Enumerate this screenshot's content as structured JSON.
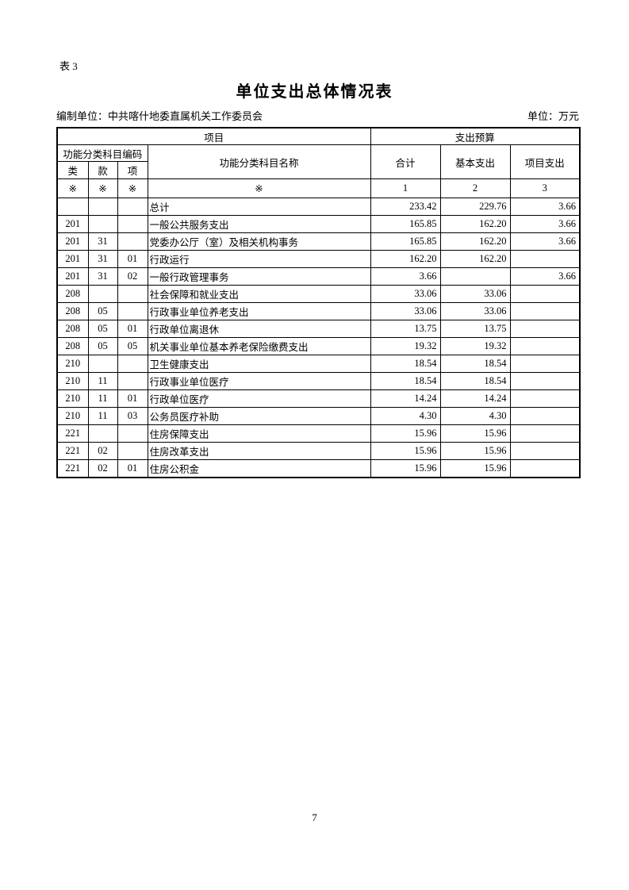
{
  "page": {
    "table_label": "表 3",
    "title": "单位支出总体情况表",
    "prepared_by_label": "编制单位：",
    "prepared_by_value": "中共喀什地委直属机关工作委员会",
    "unit_label": "单位：万元",
    "page_number": "7"
  },
  "colors": {
    "text": "#000000",
    "border": "#000000",
    "background": "#ffffff"
  },
  "table": {
    "header": {
      "project_group": "项目",
      "budget_group": "支出预算",
      "code_group": "功能分类科目编码",
      "col_lei": "类",
      "col_kuan": "款",
      "col_xiang": "项",
      "col_name": "功能分类科目名称",
      "col_total": "合计",
      "col_basic": "基本支出",
      "col_project": "项目支出",
      "marker_row": [
        "※",
        "※",
        "※",
        "※",
        "1",
        "2",
        "3"
      ]
    },
    "rows": [
      {
        "lei": "",
        "kuan": "",
        "xiang": "",
        "name": "总计",
        "total": "233.42",
        "basic": "229.76",
        "project": "3.66",
        "bold": true,
        "indent": 0
      },
      {
        "lei": "201",
        "kuan": "",
        "xiang": "",
        "name": "一般公共服务支出",
        "total": "165.85",
        "basic": "162.20",
        "project": "3.66",
        "bold": true,
        "indent": 0
      },
      {
        "lei": "201",
        "kuan": "31",
        "xiang": "",
        "name": "党委办公厅（室）及相关机构事务",
        "total": "165.85",
        "basic": "162.20",
        "project": "3.66",
        "bold": true,
        "indent": 1
      },
      {
        "lei": "201",
        "kuan": "31",
        "xiang": "01",
        "name": "行政运行",
        "total": "162.20",
        "basic": "162.20",
        "project": "",
        "bold": false,
        "indent": 2
      },
      {
        "lei": "201",
        "kuan": "31",
        "xiang": "02",
        "name": "一般行政管理事务",
        "total": "3.66",
        "basic": "",
        "project": "3.66",
        "bold": false,
        "indent": 2
      },
      {
        "lei": "208",
        "kuan": "",
        "xiang": "",
        "name": "社会保障和就业支出",
        "total": "33.06",
        "basic": "33.06",
        "project": "",
        "bold": true,
        "indent": 0
      },
      {
        "lei": "208",
        "kuan": "05",
        "xiang": "",
        "name": "行政事业单位养老支出",
        "total": "33.06",
        "basic": "33.06",
        "project": "",
        "bold": true,
        "indent": 1
      },
      {
        "lei": "208",
        "kuan": "05",
        "xiang": "01",
        "name": "行政单位离退休",
        "total": "13.75",
        "basic": "13.75",
        "project": "",
        "bold": false,
        "indent": 2
      },
      {
        "lei": "208",
        "kuan": "05",
        "xiang": "05",
        "name": "机关事业单位基本养老保险缴费支出",
        "total": "19.32",
        "basic": "19.32",
        "project": "",
        "bold": false,
        "indent": 2
      },
      {
        "lei": "210",
        "kuan": "",
        "xiang": "",
        "name": "卫生健康支出",
        "total": "18.54",
        "basic": "18.54",
        "project": "",
        "bold": true,
        "indent": 0
      },
      {
        "lei": "210",
        "kuan": "11",
        "xiang": "",
        "name": "行政事业单位医疗",
        "total": "18.54",
        "basic": "18.54",
        "project": "",
        "bold": true,
        "indent": 1
      },
      {
        "lei": "210",
        "kuan": "11",
        "xiang": "01",
        "name": "行政单位医疗",
        "total": "14.24",
        "basic": "14.24",
        "project": "",
        "bold": false,
        "indent": 2
      },
      {
        "lei": "210",
        "kuan": "11",
        "xiang": "03",
        "name": "公务员医疗补助",
        "total": "4.30",
        "basic": "4.30",
        "project": "",
        "bold": false,
        "indent": 2
      },
      {
        "lei": "221",
        "kuan": "",
        "xiang": "",
        "name": "住房保障支出",
        "total": "15.96",
        "basic": "15.96",
        "project": "",
        "bold": true,
        "indent": 0
      },
      {
        "lei": "221",
        "kuan": "02",
        "xiang": "",
        "name": "住房改革支出",
        "total": "15.96",
        "basic": "15.96",
        "project": "",
        "bold": true,
        "indent": 1
      },
      {
        "lei": "221",
        "kuan": "02",
        "xiang": "01",
        "name": "住房公积金",
        "total": "15.96",
        "basic": "15.96",
        "project": "",
        "bold": false,
        "indent": 2
      }
    ]
  }
}
